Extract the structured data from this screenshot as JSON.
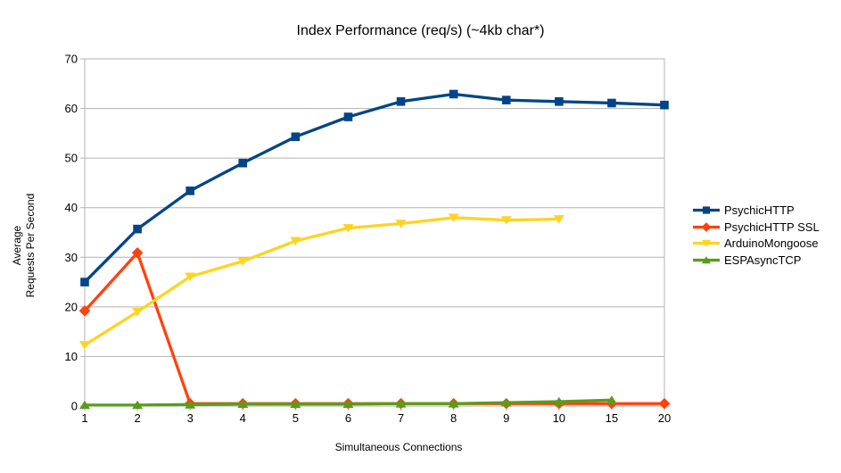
{
  "chart_data": {
    "type": "line",
    "title": "Index Performance (req/s) (~4kb char*)",
    "xlabel": "Simultaneous Connections",
    "ylabel_lines": [
      "Average",
      "Requests Per Second"
    ],
    "categories": [
      "1",
      "2",
      "3",
      "4",
      "5",
      "6",
      "7",
      "8",
      "9",
      "10",
      "15",
      "20"
    ],
    "y_ticks": [
      0,
      10,
      20,
      30,
      40,
      50,
      60,
      70
    ],
    "ylim": [
      0,
      70
    ],
    "grid": "horizontal",
    "legend_position": "right",
    "axis_color": "#b3b3b3",
    "text_color": "#000000",
    "background_color": "#ffffff",
    "series": [
      {
        "name": "PsychicHTTP",
        "color": "#004586",
        "marker": "square",
        "values": [
          25.0,
          35.7,
          43.4,
          49.0,
          54.3,
          58.3,
          61.4,
          62.9,
          61.7,
          61.4,
          61.1,
          60.7
        ]
      },
      {
        "name": "PsychicHTTP SSL",
        "color": "#ff420e",
        "marker": "diamond",
        "values": [
          19.2,
          30.9,
          0.5,
          0.5,
          0.5,
          0.5,
          0.5,
          0.5,
          0.5,
          0.5,
          0.5,
          0.5
        ]
      },
      {
        "name": "ArduinoMongoose",
        "color": "#ffd320",
        "marker": "triangle-down",
        "values": [
          12.3,
          19.0,
          26.1,
          29.2,
          33.3,
          35.9,
          36.8,
          38.0,
          37.5,
          37.7,
          null,
          null
        ]
      },
      {
        "name": "ESPAsyncTCP",
        "color": "#579d1c",
        "marker": "triangle-up",
        "values": [
          0.2,
          0.2,
          0.3,
          0.4,
          0.4,
          0.4,
          0.5,
          0.5,
          0.7,
          0.9,
          1.2,
          null
        ]
      }
    ]
  }
}
